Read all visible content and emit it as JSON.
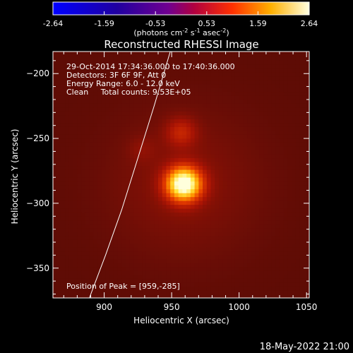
{
  "colorbar": {
    "ticks": [
      "-2.64",
      "-1.59",
      "-0.53",
      "0.53",
      "1.59",
      "2.64"
    ],
    "unit_base": "(photons cm",
    "unit_exp1": "-2",
    "unit_mid": " s",
    "unit_exp2": "-1",
    "unit_mid2": " asec",
    "unit_exp3": "-2",
    "unit_end": ")",
    "range": [
      -2.64,
      2.64
    ]
  },
  "header": {
    "title": "Reconstructed RHESSI Image"
  },
  "info": {
    "time": "29-Oct-2014 17:34:36.000 to 17:40:36.000",
    "detectors": "Detectors: 3F 6F 9F, Att 0",
    "energy": "Energy Range: 6.0 - 12.0 keV",
    "clean": "Clean     Total counts: 9.53E+05",
    "peak": "Position of Peak = [959,-285]"
  },
  "footer": {
    "date": "18-May-2022 21:00"
  },
  "chart_data": {
    "type": "heatmap",
    "title": "Reconstructed RHESSI Image",
    "xlabel": "Heliocentric X (arcsec)",
    "ylabel": "Heliocentric Y (arcsec)",
    "xlim": [
      862,
      1052
    ],
    "ylim": [
      -373,
      -183
    ],
    "xticks": [
      900,
      950,
      1000,
      1050
    ],
    "yticks": [
      -200,
      -250,
      -300,
      -350
    ],
    "sources": [
      {
        "x": 959,
        "y": -285,
        "sigma": 9,
        "amp": 1.0
      },
      {
        "x": 957,
        "y": -245,
        "sigma": 8,
        "amp": 0.22
      },
      {
        "x": 928,
        "y": -258,
        "sigma": 7,
        "amp": 0.07
      }
    ],
    "limb": [
      [
        889,
        -373
      ],
      [
        901,
        -340
      ],
      [
        913,
        -305
      ],
      [
        925,
        -265
      ],
      [
        937,
        -225
      ],
      [
        949,
        -183
      ]
    ],
    "peak": [
      959,
      -285
    ],
    "colormap": [
      "#000080",
      "#4000d0",
      "#8000c0",
      "#c00050",
      "#ff3000",
      "#ffa000",
      "#ffff80",
      "#ffffff"
    ]
  }
}
